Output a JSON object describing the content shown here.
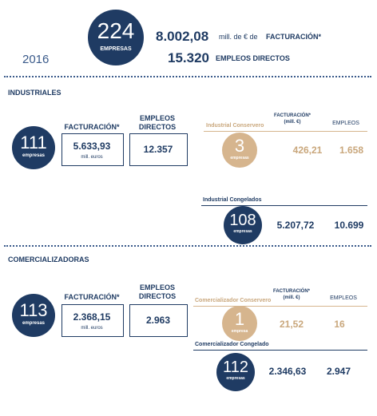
{
  "header": {
    "companies": "224",
    "companies_label": "EMPRESAS",
    "revenue": "8.002,08",
    "revenue_unit": "mill. de € de",
    "revenue_label": "FACTURACIÓN*",
    "employees": "15.320",
    "employees_label": "EMPLEOS DIRECTOS",
    "year": "2016"
  },
  "sections": [
    {
      "title": "INDUSTRIALES",
      "companies": "111",
      "companies_label": "empresas",
      "revenue_label": "FACTURACIÓN*",
      "revenue": "5.633,93",
      "revenue_unit": "mill. euros",
      "employees_label": "EMPLEOS DIRECTOS",
      "employees": "12.357",
      "subgroups": [
        {
          "name": "Industrial Conservero",
          "revenue_header": "FACTURACIÓN*",
          "revenue_unit": "(mill. €)",
          "employees_header": "EMPLEOS",
          "companies": "3",
          "companies_label": "empresas",
          "revenue": "426,21",
          "employees": "1.658"
        },
        {
          "name": "Industrial Congelados",
          "companies": "108",
          "companies_label": "empresas",
          "revenue": "5.207,72",
          "employees": "10.699"
        }
      ]
    },
    {
      "title": "COMERCIALIZADORAS",
      "companies": "113",
      "companies_label": "empresas",
      "revenue_label": "FACTURACIÓN*",
      "revenue": "2.368,15",
      "revenue_unit": "mill. euros",
      "employees_label": "EMPLEOS DIRECTOS",
      "employees": "2.963",
      "subgroups": [
        {
          "name": "Comercializador Conservero",
          "revenue_header": "FACTURACIÓN*",
          "revenue_unit": "(mill. €)",
          "employees_header": "EMPLEOS",
          "companies": "1",
          "companies_label": "empresa",
          "revenue": "21,52",
          "employees": "16"
        },
        {
          "name": "Comercializador Congelado",
          "companies": "112",
          "companies_label": "empresas",
          "revenue": "2.346,63",
          "employees": "2.947"
        }
      ]
    }
  ]
}
